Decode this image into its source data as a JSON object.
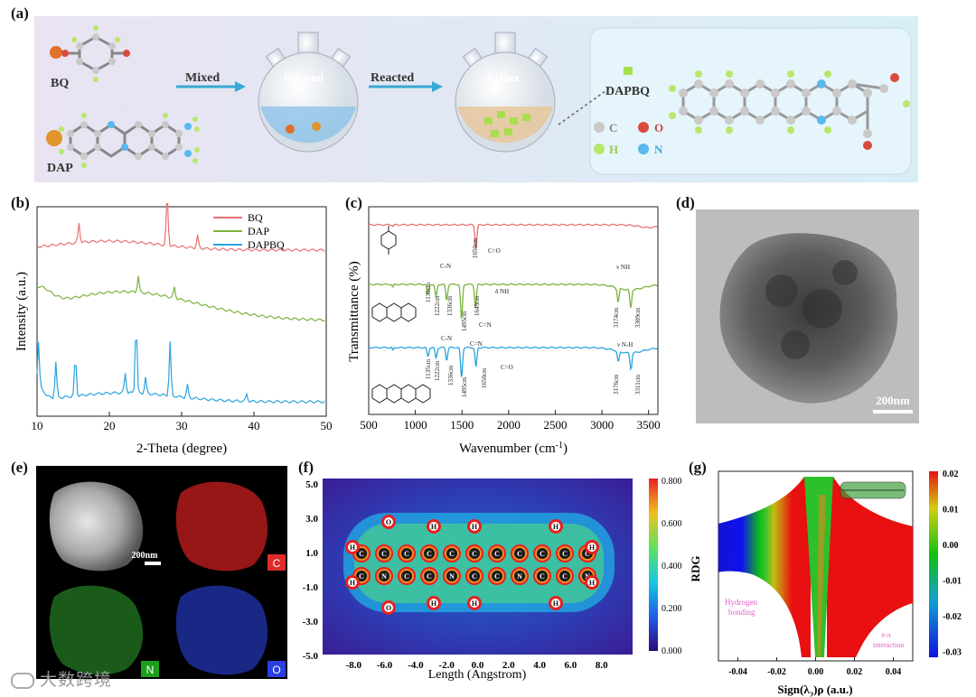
{
  "panels": {
    "a": "(a)",
    "b": "(b)",
    "c": "(c)",
    "d": "(d)",
    "e": "(e)",
    "f": "(f)",
    "g": "(g)"
  },
  "scheme": {
    "bq_label": "BQ",
    "dap_label": "DAP",
    "step1": "Mixed",
    "step2": "Reacted",
    "flask1": "Ethanol",
    "flask2": "Reflux",
    "product": "DAPBQ",
    "legend": [
      {
        "sym": "C",
        "color": "#c9c9c9"
      },
      {
        "sym": "O",
        "color": "#d94a3d"
      },
      {
        "sym": "H",
        "color": "#b7e86a"
      },
      {
        "sym": "N",
        "color": "#5ab8ec"
      }
    ]
  },
  "xrd": {
    "ylabel": "Intensity (a.u.)",
    "xlabel": "2-Theta (degree)",
    "xticks": [
      "10",
      "20",
      "30",
      "40",
      "50"
    ],
    "legend": [
      "BQ",
      "DAP",
      "DAPBQ"
    ],
    "colors": [
      "#e8716f",
      "#7ab33f",
      "#2aa3e0"
    ]
  },
  "chart_data": [
    {
      "type": "line",
      "xlabel": "2-Theta (degree)",
      "ylabel": "Intensity (a.u.)",
      "xlim": [
        10,
        50
      ],
      "series": [
        {
          "name": "BQ",
          "peaks": [
            15.8,
            28.0,
            32.2
          ]
        },
        {
          "name": "DAP",
          "peaks": [
            24.0,
            29.0
          ]
        },
        {
          "name": "DAPBQ",
          "peaks": [
            10.2,
            12.6,
            15.3,
            22.2,
            23.7,
            25.0,
            28.4,
            30.8,
            39.0
          ]
        }
      ]
    },
    {
      "type": "line",
      "xlabel": "Wavenumber (cm-1)",
      "ylabel": "Transmittance (%)",
      "xlim": [
        500,
        3600
      ],
      "series": [
        {
          "name": "BQ",
          "bands": [
            1650
          ]
        },
        {
          "name": "DAP",
          "bands": [
            1135,
            1222,
            1336,
            1495,
            1645,
            3174,
            3309
          ]
        },
        {
          "name": "DAPBQ",
          "bands": [
            1135,
            1222,
            1336,
            1495,
            1650,
            3176,
            3311
          ]
        }
      ]
    },
    {
      "type": "heatmap",
      "xlabel": "Length (Angstrom)",
      "xlim": [
        -9,
        9
      ],
      "ylim": [
        -5,
        5
      ],
      "zlim": [
        0,
        0.8
      ]
    },
    {
      "type": "scatter",
      "xlabel": "Sign(λ2)ρ (a.u.)",
      "ylabel": "RDG",
      "xlim": [
        -0.05,
        0.05
      ],
      "zlim": [
        -0.03,
        0.02
      ]
    }
  ],
  "ir": {
    "ylabel": "Transmittance (%)",
    "xlabel": "Wavenumber (cm",
    "xlabel_sup": "-1",
    "xlabel_end": ")",
    "xticks": [
      "500",
      "1000",
      "1500",
      "2000",
      "2500",
      "3000",
      "3500"
    ],
    "bq_ann": [
      "1650cm",
      "C=O"
    ],
    "dap_ann": [
      "C-N",
      "1135cm",
      "1222cm",
      "1336cm",
      "1495cm",
      "1645cm",
      "δ NH",
      "C=N",
      "ν NH",
      "3174cm",
      "3309cm"
    ],
    "dapbq_ann": [
      "C-N",
      "1135cm",
      "1222cm",
      "1336cm",
      "1495cm",
      "C=N",
      "1650cm",
      "C=O",
      "ν N-H",
      "3176cm",
      "3311cm"
    ]
  },
  "tem": {
    "scale": "200nm"
  },
  "eds": {
    "scale": "200nm",
    "labels": [
      "C",
      "N",
      "O"
    ],
    "colors": [
      "#e02b2b",
      "#1aa01a",
      "#2b3fe0"
    ]
  },
  "elf": {
    "xlabel": "Length (Angstrom)",
    "xticks": [
      "-8.0",
      "-6.0",
      "-4.0",
      "-2.0",
      "0.0",
      "2.0",
      "4.0",
      "6.0",
      "8.0"
    ],
    "yticks": [
      "5.0",
      "3.0",
      "1.0",
      "-1.0",
      "-3.0",
      "-5.0"
    ],
    "cbar": [
      "0.800",
      "0.600",
      "0.400",
      "0.200",
      "0.000"
    ]
  },
  "rdg": {
    "ylabel": "RDG",
    "xlabel": "Sign(λ",
    "xlabel_sub": "2",
    "xlabel_end": ")ρ (a.u.)",
    "xticks": [
      "-0.04",
      "-0.02",
      "0.00",
      "0.02",
      "0.04"
    ],
    "cbar": [
      "0.02",
      "0.01",
      "0.00",
      "-0.01",
      "-0.02",
      "-0.03"
    ],
    "ann1": [
      "Hydrogen",
      "bonding"
    ],
    "ann2": [
      "π-π",
      "interaction"
    ]
  },
  "watermark": "大数跨境"
}
